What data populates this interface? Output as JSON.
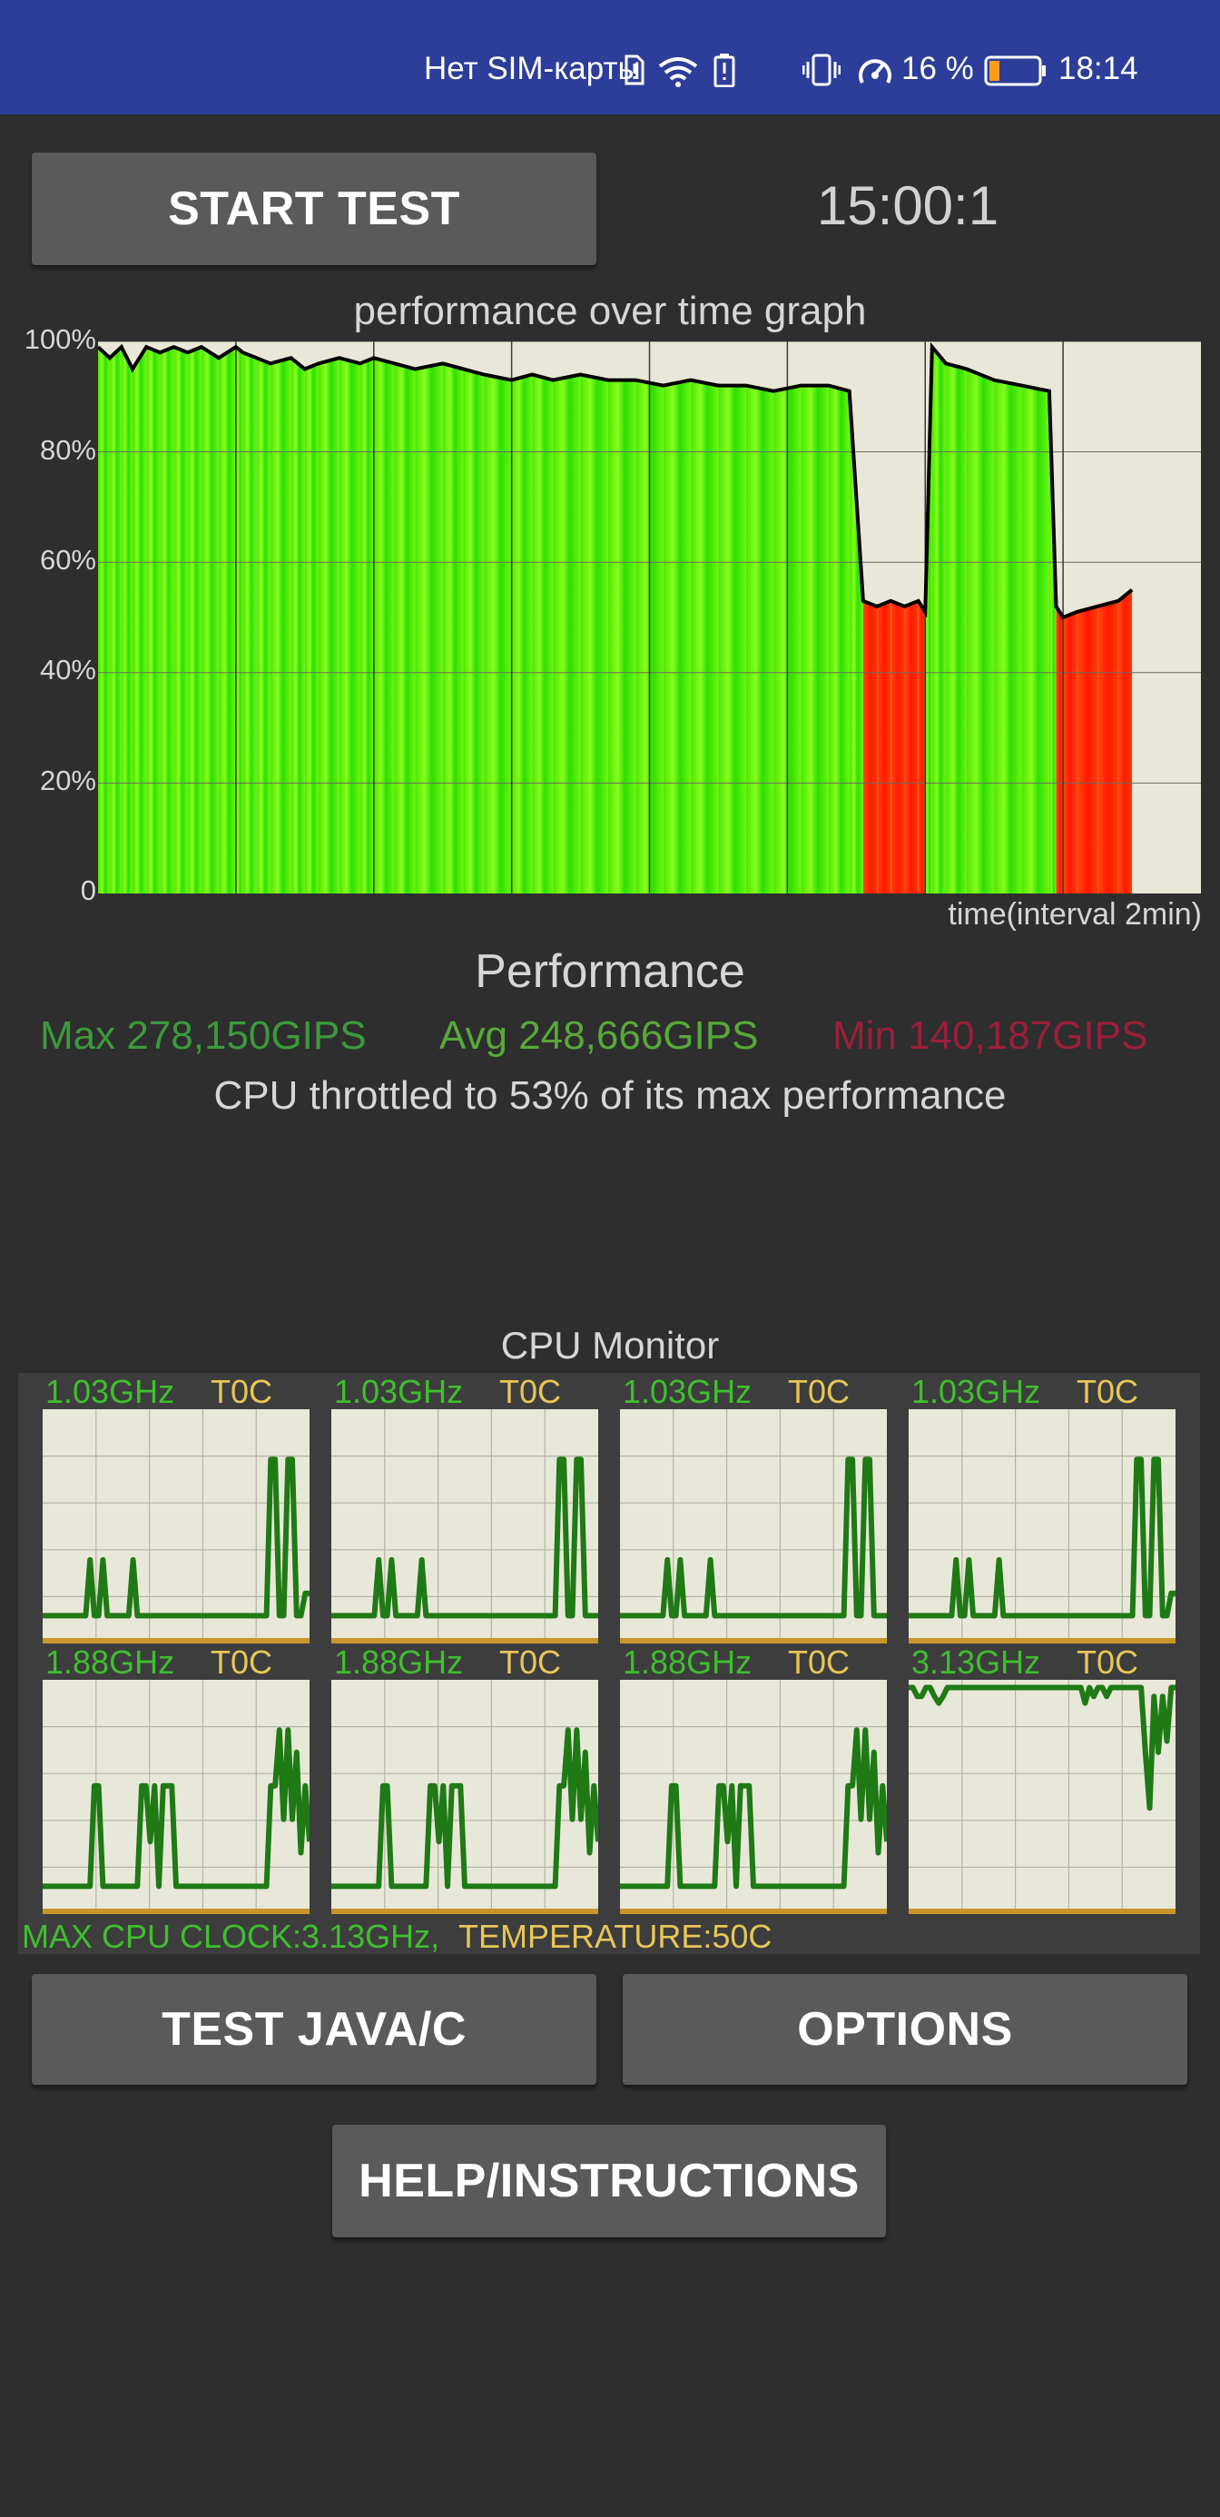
{
  "status_bar": {
    "carrier": "Нет SIM-карты",
    "battery_percent": "16 %",
    "time": "18:14",
    "icons": [
      "sim-alert-icon",
      "wifi-icon",
      "battery-saver-icon",
      "vibrate-icon",
      "speedometer-icon",
      "battery-icon"
    ]
  },
  "controls": {
    "start_label": "START TEST",
    "timer": "15:00:1",
    "test_label": "TEST JAVA/C",
    "options_label": "OPTIONS",
    "help_label": "HELP/INSTRUCTIONS"
  },
  "colors": {
    "status_bar": "#2c3e99",
    "max": "#3c9a3c",
    "avg": "#58a93a",
    "min": "#9b1f3a",
    "cpu_freq": "#3fbf2f",
    "cpu_temp": "#e6c659"
  },
  "perf_graph": {
    "title": "performance over time graph",
    "xlabel": "time(interval 2min)",
    "yticks": [
      "100%",
      "80%",
      "60%",
      "40%",
      "20%",
      "0"
    ]
  },
  "chart_data": {
    "type": "area",
    "title": "performance over time graph",
    "xlabel": "time(interval 2min)",
    "ylabel": "",
    "ylim": [
      0,
      100
    ],
    "y_ticks": [
      "0",
      "20%",
      "40%",
      "60%",
      "80%",
      "100%"
    ],
    "x_unit": "minutes",
    "xlim": [
      0,
      16
    ],
    "series": [
      {
        "x": [
          0,
          0.17,
          0.34,
          0.5,
          0.7,
          0.9,
          1.1,
          1.3,
          1.5,
          1.75,
          2.0,
          2.1,
          2.3,
          2.5,
          2.8,
          3.0,
          3.2,
          3.5,
          3.8,
          4.0,
          4.3,
          4.6,
          5.0,
          5.3,
          5.6,
          6.0,
          6.3,
          6.6,
          7.0,
          7.4,
          7.8,
          8.2,
          8.6,
          9.0,
          9.4,
          9.8,
          10.2,
          10.6,
          10.9,
          11.1,
          11.3,
          11.5,
          11.7,
          11.9,
          12.0,
          12.1,
          12.3,
          12.6,
          13.0,
          13.4,
          13.8,
          13.9,
          14.0,
          14.2,
          14.5,
          14.8,
          15.0
        ],
        "y": [
          99,
          97,
          99,
          95,
          99,
          98,
          99,
          98,
          99,
          97,
          99,
          98,
          97,
          96,
          97,
          95,
          96,
          97,
          96,
          97,
          96,
          95,
          96,
          95,
          94,
          93,
          94,
          93,
          94,
          93,
          93,
          92,
          93,
          92,
          92,
          91,
          92,
          92,
          91,
          53,
          52,
          53,
          52,
          53,
          51,
          99,
          96,
          95,
          93,
          92,
          91,
          52,
          50,
          51,
          52,
          53,
          55
        ]
      }
    ]
  },
  "performance": {
    "title": "Performance",
    "max": "Max 278,150GIPS",
    "avg": "Avg 248,666GIPS",
    "min": "Min 140,187GIPS",
    "throttle": "CPU throttled to 53% of its max performance"
  },
  "cpu_monitor": {
    "title": "CPU Monitor",
    "cores": [
      {
        "freq": "1.03GHz",
        "temp": "T0C",
        "load": [
          0.1,
          0.1,
          0.1,
          0.1,
          0.1,
          0.1,
          0.1,
          0.1,
          0.1,
          0.1,
          0.1,
          0.35,
          0.1,
          0.1,
          0.35,
          0.1,
          0.1,
          0.1,
          0.1,
          0.1,
          0.1,
          0.35,
          0.1,
          0.1,
          0.1,
          0.1,
          0.1,
          0.1,
          0.1,
          0.1,
          0.1,
          0.1,
          0.1,
          0.1,
          0.1,
          0.1,
          0.1,
          0.1,
          0.1,
          0.1,
          0.1,
          0.1,
          0.1,
          0.1,
          0.1,
          0.1,
          0.1,
          0.1,
          0.1,
          0.1,
          0.1,
          0.1,
          0.1,
          0.8,
          0.8,
          0.1,
          0.1,
          0.8,
          0.8,
          0.1,
          0.1,
          0.2,
          0.2
        ]
      },
      {
        "freq": "1.03GHz",
        "temp": "T0C",
        "load": [
          0.1,
          0.1,
          0.1,
          0.1,
          0.1,
          0.1,
          0.1,
          0.1,
          0.1,
          0.1,
          0.1,
          0.35,
          0.1,
          0.1,
          0.35,
          0.1,
          0.1,
          0.1,
          0.1,
          0.1,
          0.1,
          0.35,
          0.1,
          0.1,
          0.1,
          0.1,
          0.1,
          0.1,
          0.1,
          0.1,
          0.1,
          0.1,
          0.1,
          0.1,
          0.1,
          0.1,
          0.1,
          0.1,
          0.1,
          0.1,
          0.1,
          0.1,
          0.1,
          0.1,
          0.1,
          0.1,
          0.1,
          0.1,
          0.1,
          0.1,
          0.1,
          0.1,
          0.1,
          0.8,
          0.8,
          0.1,
          0.1,
          0.8,
          0.8,
          0.1,
          0.1,
          0.1,
          0.1
        ]
      },
      {
        "freq": "1.03GHz",
        "temp": "T0C",
        "load": [
          0.1,
          0.1,
          0.1,
          0.1,
          0.1,
          0.1,
          0.1,
          0.1,
          0.1,
          0.1,
          0.1,
          0.35,
          0.1,
          0.1,
          0.35,
          0.1,
          0.1,
          0.1,
          0.1,
          0.1,
          0.1,
          0.35,
          0.1,
          0.1,
          0.1,
          0.1,
          0.1,
          0.1,
          0.1,
          0.1,
          0.1,
          0.1,
          0.1,
          0.1,
          0.1,
          0.1,
          0.1,
          0.1,
          0.1,
          0.1,
          0.1,
          0.1,
          0.1,
          0.1,
          0.1,
          0.1,
          0.1,
          0.1,
          0.1,
          0.1,
          0.1,
          0.1,
          0.1,
          0.8,
          0.8,
          0.1,
          0.1,
          0.8,
          0.8,
          0.1,
          0.1,
          0.1,
          0.1
        ]
      },
      {
        "freq": "1.03GHz",
        "temp": "T0C",
        "load": [
          0.1,
          0.1,
          0.1,
          0.1,
          0.1,
          0.1,
          0.1,
          0.1,
          0.1,
          0.1,
          0.1,
          0.35,
          0.1,
          0.1,
          0.35,
          0.1,
          0.1,
          0.1,
          0.1,
          0.1,
          0.1,
          0.35,
          0.1,
          0.1,
          0.1,
          0.1,
          0.1,
          0.1,
          0.1,
          0.1,
          0.1,
          0.1,
          0.1,
          0.1,
          0.1,
          0.1,
          0.1,
          0.1,
          0.1,
          0.1,
          0.1,
          0.1,
          0.1,
          0.1,
          0.1,
          0.1,
          0.1,
          0.1,
          0.1,
          0.1,
          0.1,
          0.1,
          0.1,
          0.8,
          0.8,
          0.1,
          0.1,
          0.8,
          0.8,
          0.1,
          0.1,
          0.2,
          0.2
        ]
      },
      {
        "freq": "1.88GHz",
        "temp": "T0C",
        "load": [
          0.1,
          0.1,
          0.1,
          0.1,
          0.1,
          0.1,
          0.1,
          0.1,
          0.1,
          0.1,
          0.1,
          0.1,
          0.55,
          0.55,
          0.1,
          0.1,
          0.1,
          0.1,
          0.1,
          0.1,
          0.1,
          0.1,
          0.1,
          0.55,
          0.55,
          0.3,
          0.55,
          0.1,
          0.55,
          0.55,
          0.55,
          0.1,
          0.1,
          0.1,
          0.1,
          0.1,
          0.1,
          0.1,
          0.1,
          0.1,
          0.1,
          0.1,
          0.1,
          0.1,
          0.1,
          0.1,
          0.1,
          0.1,
          0.1,
          0.1,
          0.1,
          0.1,
          0.1,
          0.55,
          0.55,
          0.8,
          0.4,
          0.8,
          0.4,
          0.7,
          0.25,
          0.55,
          0.3
        ]
      },
      {
        "freq": "1.88GHz",
        "temp": "T0C",
        "load": [
          0.1,
          0.1,
          0.1,
          0.1,
          0.1,
          0.1,
          0.1,
          0.1,
          0.1,
          0.1,
          0.1,
          0.1,
          0.55,
          0.55,
          0.1,
          0.1,
          0.1,
          0.1,
          0.1,
          0.1,
          0.1,
          0.1,
          0.1,
          0.55,
          0.55,
          0.3,
          0.55,
          0.1,
          0.55,
          0.55,
          0.55,
          0.1,
          0.1,
          0.1,
          0.1,
          0.1,
          0.1,
          0.1,
          0.1,
          0.1,
          0.1,
          0.1,
          0.1,
          0.1,
          0.1,
          0.1,
          0.1,
          0.1,
          0.1,
          0.1,
          0.1,
          0.1,
          0.1,
          0.55,
          0.55,
          0.8,
          0.4,
          0.8,
          0.4,
          0.7,
          0.25,
          0.55,
          0.3
        ]
      },
      {
        "freq": "1.88GHz",
        "temp": "T0C",
        "load": [
          0.1,
          0.1,
          0.1,
          0.1,
          0.1,
          0.1,
          0.1,
          0.1,
          0.1,
          0.1,
          0.1,
          0.1,
          0.55,
          0.55,
          0.1,
          0.1,
          0.1,
          0.1,
          0.1,
          0.1,
          0.1,
          0.1,
          0.1,
          0.55,
          0.55,
          0.3,
          0.55,
          0.1,
          0.55,
          0.55,
          0.55,
          0.1,
          0.1,
          0.1,
          0.1,
          0.1,
          0.1,
          0.1,
          0.1,
          0.1,
          0.1,
          0.1,
          0.1,
          0.1,
          0.1,
          0.1,
          0.1,
          0.1,
          0.1,
          0.1,
          0.1,
          0.1,
          0.1,
          0.55,
          0.55,
          0.8,
          0.4,
          0.8,
          0.4,
          0.7,
          0.25,
          0.55,
          0.3
        ]
      },
      {
        "freq": "3.13GHz",
        "temp": "T0C",
        "load": [
          0.99,
          0.99,
          0.95,
          0.95,
          0.99,
          0.99,
          0.95,
          0.92,
          0.95,
          0.99,
          0.99,
          0.99,
          0.99,
          0.99,
          0.99,
          0.99,
          0.99,
          0.99,
          0.99,
          0.99,
          0.99,
          0.99,
          0.99,
          0.99,
          0.99,
          0.99,
          0.99,
          0.99,
          0.99,
          0.99,
          0.99,
          0.99,
          0.99,
          0.99,
          0.99,
          0.99,
          0.99,
          0.99,
          0.99,
          0.99,
          0.99,
          0.92,
          0.99,
          0.95,
          0.99,
          0.99,
          0.95,
          0.99,
          0.99,
          0.99,
          0.99,
          0.99,
          0.99,
          0.99,
          0.99,
          0.7,
          0.45,
          0.95,
          0.7,
          0.95,
          0.75,
          0.99,
          0.99
        ]
      }
    ],
    "footer_max": "MAX CPU CLOCK:3.13GHz,",
    "footer_temp": "TEMPERATURE:50C"
  }
}
